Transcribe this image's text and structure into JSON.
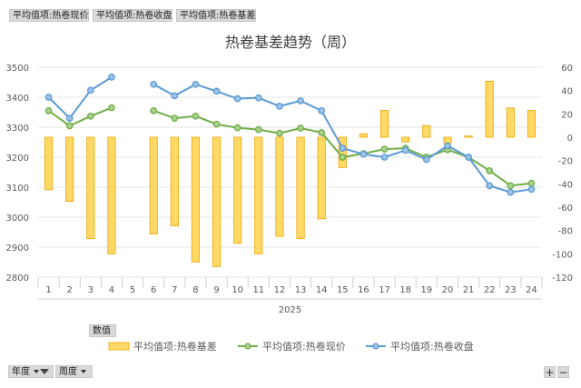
{
  "field_buttons": {
    "top": [
      "平均值项:热卷现价",
      "平均值项:热卷收盘",
      "平均值项:热卷基差"
    ],
    "value_field": "数值",
    "filters": [
      {
        "label": "年度",
        "icons": [
          "chevron-down-icon",
          "filter-icon"
        ]
      },
      {
        "label": "周度",
        "icons": [
          "chevron-down-icon"
        ]
      }
    ],
    "expand": "+",
    "collapse": "−"
  },
  "colors": {
    "bar_fill": "#ffd966",
    "bar_stroke": "#f0a500",
    "green": "#70ad47",
    "green_marker": "#a9d18e",
    "blue": "#5b9bd5",
    "blue_marker": "#9dc3e6",
    "grid": "#e4e4e4",
    "axis_text": "#595959",
    "button_bg": "#d9d9d9"
  },
  "chart_data": {
    "type": "bar",
    "title": "热卷基差趋势（周）",
    "categories": [
      "1",
      "2",
      "3",
      "4",
      "5",
      "6",
      "7",
      "8",
      "9",
      "10",
      "11",
      "12",
      "13",
      "14",
      "15",
      "16",
      "17",
      "18",
      "19",
      "20",
      "21",
      "22",
      "23",
      "24"
    ],
    "year_label": "2025",
    "y_left": {
      "min": 2800,
      "max": 3500,
      "step": 100,
      "ticks": [
        "2800",
        "2900",
        "3000",
        "3100",
        "3200",
        "3300",
        "3400",
        "3500"
      ]
    },
    "y_right": {
      "min": -120,
      "max": 60,
      "step": 20,
      "ticks": [
        "-120",
        "-100",
        "-80",
        "-60",
        "-40",
        "-20",
        "0",
        "20",
        "40",
        "60"
      ]
    },
    "grid": true,
    "legend_position": "bottom",
    "series": [
      {
        "name": "平均值项:热卷基差",
        "type": "bar",
        "axis": "right",
        "values": [
          -45,
          -55,
          -87,
          -100,
          null,
          -83,
          -76,
          -107,
          -111,
          -91,
          -100,
          -85,
          -87,
          -70,
          -26,
          3,
          23,
          -4,
          10,
          -5,
          1,
          48,
          25,
          23
        ]
      },
      {
        "name": "平均值项:热卷现价",
        "type": "line",
        "axis": "left",
        "values": [
          3355,
          3305,
          3337,
          3365,
          null,
          3355,
          3330,
          3337,
          3310,
          3298,
          3292,
          3280,
          3297,
          3282,
          3200,
          3212,
          3227,
          3230,
          3200,
          3225,
          3200,
          3155,
          3105,
          3113
        ]
      },
      {
        "name": "平均值项:热卷收盘",
        "type": "line",
        "axis": "left",
        "values": [
          3400,
          3330,
          3423,
          3467,
          null,
          3443,
          3405,
          3443,
          3420,
          3395,
          3398,
          3370,
          3388,
          3355,
          3230,
          3210,
          3200,
          3223,
          3192,
          3238,
          3200,
          3105,
          3083,
          3093
        ]
      }
    ]
  }
}
